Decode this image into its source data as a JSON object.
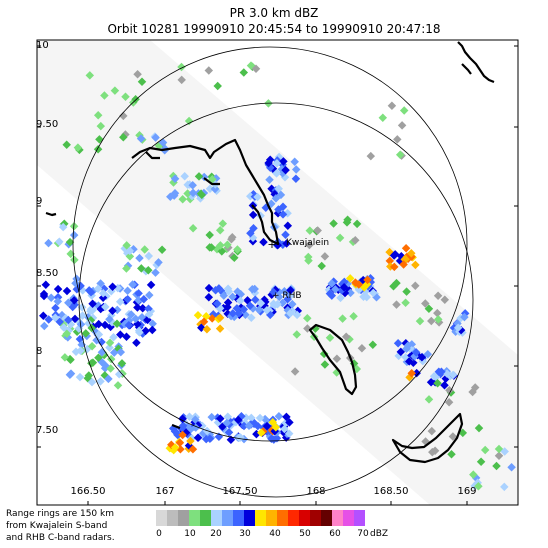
{
  "header": {
    "line1": "PR  3.0 km dBZ",
    "line2": "Orbit 10281 19990910 20:45:54 to 19990910 20:47:18"
  },
  "axes": {
    "lat_labels": [
      "10",
      "9.50",
      "9",
      "8.50",
      "8",
      "7.50"
    ],
    "lon_labels": [
      "166.50",
      "167",
      "167.50",
      "168",
      "168.50",
      "169"
    ]
  },
  "places": {
    "kwajalein": "Kwajalein",
    "rhb": "+ RHB"
  },
  "footnote": {
    "line1": "Range rings are 150 km",
    "line2": "from Kwajalein S-band",
    "line3": "and RHB C-band radars."
  },
  "colorbar": {
    "unit": "dBZ",
    "labels": [
      "0",
      "10",
      "20",
      "30",
      "40",
      "50",
      "60",
      "70"
    ],
    "colors": [
      "#d8d8d8",
      "#bcbcbc",
      "#a0a0a0",
      "#7ee07e",
      "#4cbf4c",
      "#aad2ff",
      "#6e9eff",
      "#3c64ff",
      "#0000dc",
      "#ffe600",
      "#ffb400",
      "#ff6e00",
      "#ff2800",
      "#d80000",
      "#a00000",
      "#640000",
      "#ff82c8",
      "#e650e6",
      "#b450ff"
    ]
  }
}
